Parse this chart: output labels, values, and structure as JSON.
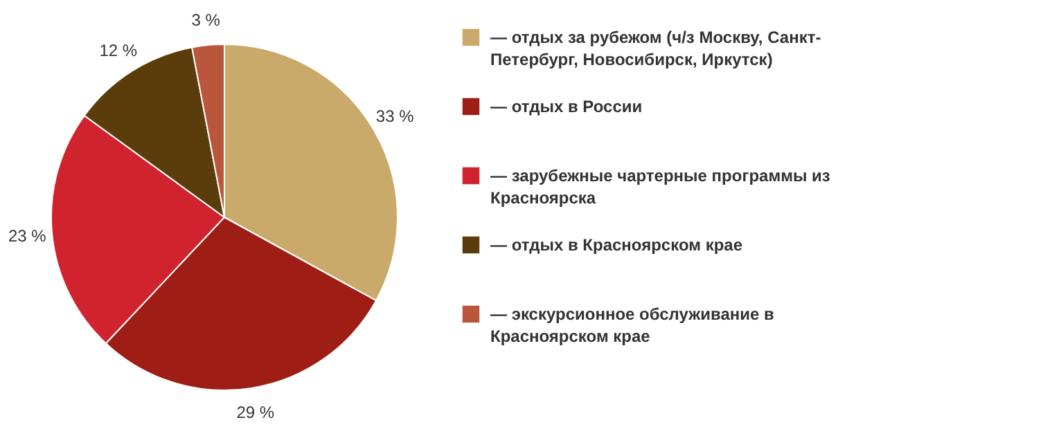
{
  "chart_data": {
    "type": "pie",
    "categories": [
      "— отдых за рубежом (ч/з Москву, Санкт-Петербург, Новосибирск, Иркутск)",
      "— отдых в России",
      "— зарубежные чартерные программы из Красноярска",
      "— отдых в Красноярском крае",
      "— экскурсионное обслуживание в Красноярском крае"
    ],
    "values": [
      33,
      29,
      23,
      12,
      3
    ],
    "value_labels": [
      "33 %",
      "29 %",
      "23 %",
      "12 %",
      "3 %"
    ],
    "colors": [
      "#c9aa6a",
      "#9e1d14",
      "#d0232d",
      "#5a3d0b",
      "#b9563b"
    ],
    "legend": "right"
  }
}
